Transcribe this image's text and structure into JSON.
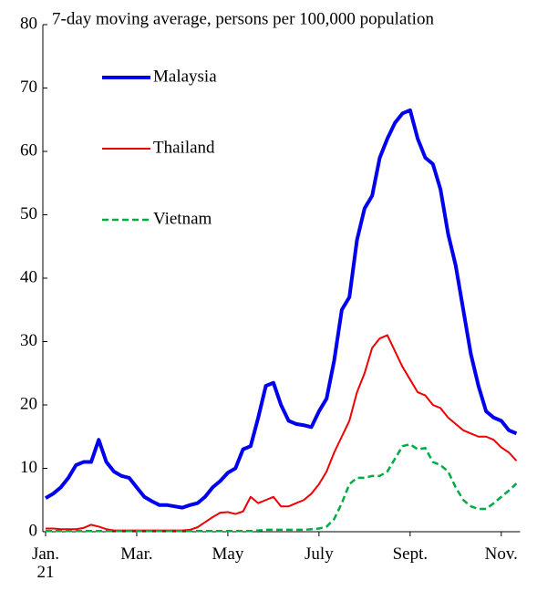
{
  "chart_data": {
    "type": "line",
    "subtitle": "7-day moving average, persons per 100,000 population",
    "categories": [
      "Jan.\n21",
      null,
      null,
      null,
      null,
      null,
      null,
      null,
      null,
      null,
      null,
      null,
      "Mar.",
      null,
      null,
      null,
      null,
      null,
      null,
      null,
      null,
      null,
      null,
      null,
      "May",
      null,
      null,
      null,
      null,
      null,
      null,
      null,
      null,
      null,
      null,
      null,
      "July",
      null,
      null,
      null,
      null,
      null,
      null,
      null,
      null,
      null,
      null,
      null,
      "Sept.",
      null,
      null,
      null,
      null,
      null,
      null,
      null,
      null,
      null,
      null,
      null,
      "Nov.",
      null,
      null
    ],
    "series": [
      {
        "name": "Malaysia",
        "color": "#0000ee",
        "width": 4,
        "dash": "solid",
        "values": [
          5.3,
          6,
          7,
          8.5,
          10.5,
          11,
          11,
          14.5,
          11,
          9.5,
          8.8,
          8.5,
          7,
          5.5,
          4.8,
          4.2,
          4.2,
          4,
          3.8,
          4.2,
          4.5,
          5.5,
          7,
          8,
          9.3,
          10,
          13,
          13.5,
          18,
          23,
          23.5,
          20,
          17.5,
          17,
          16.8,
          16.5,
          19,
          21,
          27,
          35,
          37,
          46,
          51,
          53,
          59,
          62,
          64.5,
          66,
          66.5,
          62,
          59,
          58,
          54,
          47,
          42,
          35,
          28,
          23,
          19,
          18,
          17.5,
          16,
          15.5
        ]
      },
      {
        "name": "Thailand",
        "color": "#ee0000",
        "width": 2,
        "dash": "solid",
        "values": [
          0.5,
          0.5,
          0.4,
          0.4,
          0.4,
          0.6,
          1.1,
          0.8,
          0.4,
          0.2,
          0.2,
          0.2,
          0.2,
          0.2,
          0.2,
          0.2,
          0.2,
          0.2,
          0.2,
          0.3,
          0.7,
          1.5,
          2.3,
          3,
          3.1,
          2.8,
          3.2,
          5.5,
          4.5,
          5,
          5.5,
          4,
          4,
          4.5,
          5,
          6,
          7.5,
          9.5,
          12.5,
          15,
          17.5,
          22,
          25,
          29,
          30.5,
          31,
          28.5,
          26,
          24,
          22,
          21.5,
          20,
          19.5,
          18,
          17,
          16,
          15.5,
          15,
          15,
          14.5,
          13.3,
          12.5,
          11.2
        ]
      },
      {
        "name": "Vietnam",
        "color": "#00aa44",
        "width": 2.5,
        "dash": "dashed",
        "values": [
          0.1,
          0.1,
          0.1,
          0.1,
          0.1,
          0.1,
          0.1,
          0.1,
          0.1,
          0.1,
          0.1,
          0.1,
          0.1,
          0.1,
          0.1,
          0.1,
          0.1,
          0.1,
          0.1,
          0.1,
          0.1,
          0.1,
          0.1,
          0.1,
          0.1,
          0.1,
          0.1,
          0.1,
          0.2,
          0.3,
          0.3,
          0.3,
          0.3,
          0.3,
          0.3,
          0.4,
          0.5,
          0.8,
          2,
          4.5,
          7.5,
          8.5,
          8.5,
          8.8,
          8.8,
          9.5,
          11.5,
          13.5,
          13.8,
          13,
          13.2,
          11,
          10.5,
          9.5,
          7,
          5,
          4,
          3.6,
          3.6,
          4.5,
          5.5,
          6.5,
          7.6
        ]
      }
    ],
    "ylim": [
      0,
      80
    ],
    "yticks": [
      0,
      10,
      20,
      30,
      40,
      50,
      60,
      70,
      80
    ],
    "legend_position": "upper left",
    "grid": false
  }
}
